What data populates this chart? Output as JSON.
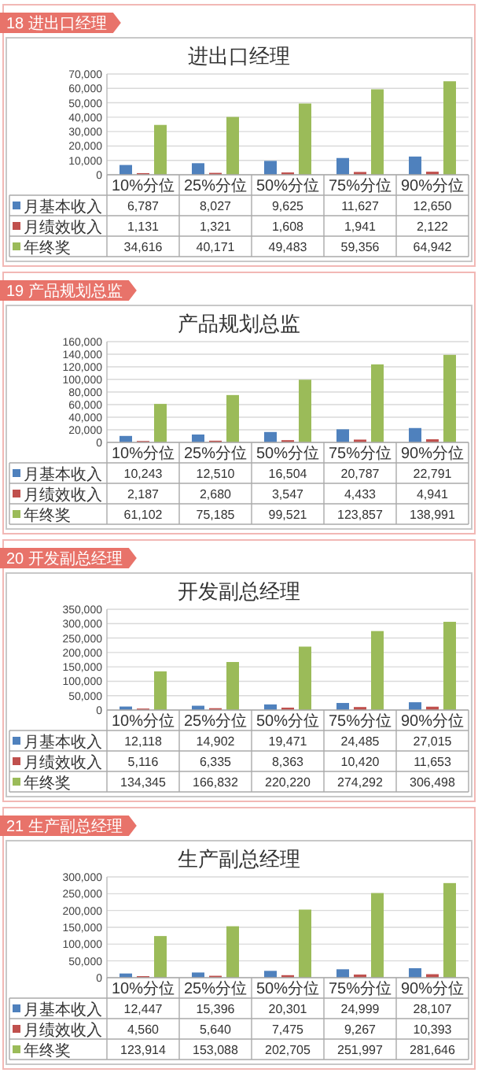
{
  "chart_data": [
    {
      "type": "bar",
      "title": "进出口经理",
      "annotations": [
        "18 进出口经理"
      ],
      "categories": [
        "10%分位",
        "25%分位",
        "50%分位",
        "75%分位",
        "90%分位"
      ],
      "ylim": [
        0,
        70000
      ],
      "yticks": [
        {
          "value": 0,
          "label": "0"
        },
        {
          "value": 10000,
          "label": "10,000"
        },
        {
          "value": 20000,
          "label": "20,000"
        },
        {
          "value": 30000,
          "label": "30,000"
        },
        {
          "value": 40000,
          "label": "40,000"
        },
        {
          "value": 50000,
          "label": "50,000"
        },
        {
          "value": 60000,
          "label": "60,000"
        },
        {
          "value": 70000,
          "label": "70,000"
        }
      ],
      "grid": "y",
      "legend": "bottom",
      "series": [
        {
          "name": "月基本收入",
          "color": "#4f81bd",
          "values": [
            6787,
            8027,
            9625,
            11627,
            12650
          ],
          "value_labels": [
            "6,787",
            "8,027",
            "9,625",
            "11,627",
            "12,650"
          ]
        },
        {
          "name": "月绩效收入",
          "color": "#c0504d",
          "values": [
            1131,
            1321,
            1608,
            1941,
            2122
          ],
          "value_labels": [
            "1,131",
            "1,321",
            "1,608",
            "1,941",
            "2,122"
          ]
        },
        {
          "name": "年终奖",
          "color": "#9bbb59",
          "values": [
            34616,
            40171,
            49483,
            59356,
            64942
          ],
          "value_labels": [
            "34,616",
            "40,171",
            "49,483",
            "59,356",
            "64,942"
          ]
        }
      ]
    },
    {
      "type": "bar",
      "title": "产品规划总监",
      "annotations": [
        "19 产品规划总监"
      ],
      "categories": [
        "10%分位",
        "25%分位",
        "50%分位",
        "75%分位",
        "90%分位"
      ],
      "ylim": [
        0,
        160000
      ],
      "yticks": [
        {
          "value": 0,
          "label": "0"
        },
        {
          "value": 20000,
          "label": "20,000"
        },
        {
          "value": 40000,
          "label": "40,000"
        },
        {
          "value": 60000,
          "label": "60,000"
        },
        {
          "value": 80000,
          "label": "80,000"
        },
        {
          "value": 100000,
          "label": "100,000"
        },
        {
          "value": 120000,
          "label": "120,000"
        },
        {
          "value": 140000,
          "label": "140,000"
        },
        {
          "value": 160000,
          "label": "160,000"
        }
      ],
      "grid": "y",
      "legend": "bottom",
      "series": [
        {
          "name": "月基本收入",
          "color": "#4f81bd",
          "values": [
            10243,
            12510,
            16504,
            20787,
            22791
          ],
          "value_labels": [
            "10,243",
            "12,510",
            "16,504",
            "20,787",
            "22,791"
          ]
        },
        {
          "name": "月绩效收入",
          "color": "#c0504d",
          "values": [
            2187,
            2680,
            3547,
            4433,
            4941
          ],
          "value_labels": [
            "2,187",
            "2,680",
            "3,547",
            "4,433",
            "4,941"
          ]
        },
        {
          "name": "年终奖",
          "color": "#9bbb59",
          "values": [
            61102,
            75185,
            99521,
            123857,
            138991
          ],
          "value_labels": [
            "61,102",
            "75,185",
            "99,521",
            "123,857",
            "138,991"
          ]
        }
      ]
    },
    {
      "type": "bar",
      "title": "开发副总经理",
      "annotations": [
        "20 开发副总经理"
      ],
      "categories": [
        "10%分位",
        "25%分位",
        "50%分位",
        "75%分位",
        "90%分位"
      ],
      "ylim": [
        0,
        350000
      ],
      "yticks": [
        {
          "value": 0,
          "label": "0"
        },
        {
          "value": 50000,
          "label": "50,000"
        },
        {
          "value": 100000,
          "label": "100,000"
        },
        {
          "value": 150000,
          "label": "150,000"
        },
        {
          "value": 200000,
          "label": "200,000"
        },
        {
          "value": 250000,
          "label": "250,000"
        },
        {
          "value": 300000,
          "label": "300,000"
        },
        {
          "value": 350000,
          "label": "350,000"
        }
      ],
      "grid": "y",
      "legend": "bottom",
      "series": [
        {
          "name": "月基本收入",
          "color": "#4f81bd",
          "values": [
            12118,
            14902,
            19471,
            24485,
            27015
          ],
          "value_labels": [
            "12,118",
            "14,902",
            "19,471",
            "24,485",
            "27,015"
          ]
        },
        {
          "name": "月绩效收入",
          "color": "#c0504d",
          "values": [
            5116,
            6335,
            8363,
            10420,
            11653
          ],
          "value_labels": [
            "5,116",
            "6,335",
            "8,363",
            "10,420",
            "11,653"
          ]
        },
        {
          "name": "年终奖",
          "color": "#9bbb59",
          "values": [
            134345,
            166832,
            220220,
            274292,
            306498
          ],
          "value_labels": [
            "134,345",
            "166,832",
            "220,220",
            "274,292",
            "306,498"
          ]
        }
      ]
    },
    {
      "type": "bar",
      "title": "生产副总经理",
      "annotations": [
        "21 生产副总经理"
      ],
      "categories": [
        "10%分位",
        "25%分位",
        "50%分位",
        "75%分位",
        "90%分位"
      ],
      "ylim": [
        0,
        300000
      ],
      "yticks": [
        {
          "value": 0,
          "label": "0"
        },
        {
          "value": 50000,
          "label": "50,000"
        },
        {
          "value": 100000,
          "label": "100,000"
        },
        {
          "value": 150000,
          "label": "150,000"
        },
        {
          "value": 200000,
          "label": "200,000"
        },
        {
          "value": 250000,
          "label": "250,000"
        },
        {
          "value": 300000,
          "label": "300,000"
        }
      ],
      "grid": "y",
      "legend": "bottom",
      "series": [
        {
          "name": "月基本收入",
          "color": "#4f81bd",
          "values": [
            12447,
            15396,
            20301,
            24999,
            28107
          ],
          "value_labels": [
            "12,447",
            "15,396",
            "20,301",
            "24,999",
            "28,107"
          ]
        },
        {
          "name": "月绩效收入",
          "color": "#c0504d",
          "values": [
            4560,
            5640,
            7475,
            9267,
            10393
          ],
          "value_labels": [
            "4,560",
            "5,640",
            "7,475",
            "9,267",
            "10,393"
          ]
        },
        {
          "name": "年终奖",
          "color": "#9bbb59",
          "values": [
            123914,
            153088,
            202705,
            251997,
            281646
          ],
          "value_labels": [
            "123,914",
            "153,088",
            "202,705",
            "251,997",
            "281,646"
          ]
        }
      ]
    }
  ]
}
